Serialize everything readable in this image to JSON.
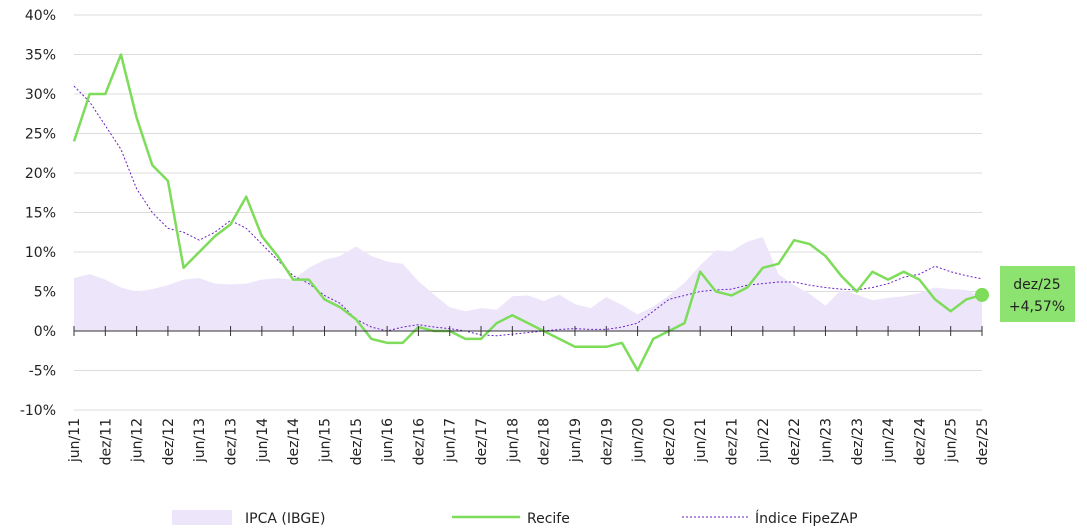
{
  "chart_data": {
    "type": "line",
    "categories": [
      "jun/11",
      null,
      "dez/11",
      null,
      "jun/12",
      null,
      "dez/12",
      null,
      "jun/13",
      null,
      "dez/13",
      null,
      "jun/14",
      null,
      "dez/14",
      null,
      "jun/15",
      null,
      "dez/15",
      null,
      "jun/16",
      null,
      "dez/16",
      null,
      "jun/17",
      null,
      "dez/17",
      null,
      "jun/18",
      null,
      "dez/18",
      null,
      "jun/19",
      null,
      "dez/19",
      null,
      "jun/20",
      null,
      "dez/20",
      null,
      "jun/21",
      null,
      "dez/21",
      null,
      "jun/22",
      null,
      "dez/22",
      null,
      "jun/23",
      null,
      "dez/23",
      null,
      "jun/24",
      null,
      "dez/24",
      null,
      "jun/25",
      null,
      "dez/25"
    ],
    "series": [
      {
        "name": "IPCA (IBGE)",
        "kind": "area",
        "color": "#ede6fb",
        "values": [
          6.7,
          7.2,
          6.5,
          5.5,
          5,
          5.3,
          5.8,
          6.5,
          6.7,
          6,
          5.9,
          6,
          6.5,
          6.7,
          6.5,
          8,
          9,
          9.5,
          10.7,
          9.5,
          8.8,
          8.5,
          6.3,
          4.6,
          3,
          2.5,
          2.9,
          2.7,
          4.4,
          4.5,
          3.8,
          4.6,
          3.4,
          2.9,
          4.3,
          3.3,
          2.1,
          3.1,
          4.5,
          6.1,
          8.3,
          10.2,
          10.1,
          11.3,
          11.9,
          7.2,
          5.8,
          4.7,
          3.2,
          5.2,
          4.6,
          3.9,
          4.2,
          4.4,
          4.8,
          5.5,
          5.3,
          5.2,
          4.3
        ]
      },
      {
        "name": "Recife",
        "kind": "line",
        "color": "#7ddc5a",
        "values": [
          24,
          30,
          30,
          35,
          27,
          21,
          19,
          8,
          10,
          12,
          13.5,
          17,
          12,
          9.5,
          6.5,
          6.5,
          4,
          3,
          1.5,
          -1,
          -1.5,
          -1.5,
          0.5,
          0,
          0,
          -1,
          -1,
          1,
          2,
          1,
          0,
          -1,
          -2,
          -2,
          -2,
          -1.5,
          -5,
          -1,
          0,
          1,
          7.5,
          5,
          4.5,
          5.5,
          8,
          8.5,
          11.5,
          11,
          9.5,
          7,
          5,
          7.5,
          6.5,
          7.5,
          6.5,
          4,
          2.5,
          4,
          4.57
        ]
      },
      {
        "name": "Índice FipeZAP",
        "kind": "dotted",
        "color": "#6a1fc2",
        "values": [
          31,
          29,
          26,
          23,
          18,
          15,
          13,
          12.5,
          11.5,
          12.5,
          14,
          13,
          11,
          9,
          7,
          6,
          4.5,
          3.5,
          1.5,
          0.5,
          0,
          0.5,
          0.8,
          0.5,
          0.3,
          0,
          -0.5,
          -0.6,
          -0.4,
          -0.2,
          0,
          0.2,
          0.3,
          0.2,
          0.2,
          0.5,
          1,
          2.5,
          4,
          4.5,
          5,
          5.2,
          5.3,
          5.8,
          6,
          6.2,
          6.2,
          5.8,
          5.5,
          5.3,
          5.2,
          5.5,
          6,
          6.8,
          7.2,
          8.2,
          7.5,
          7,
          6.6
        ]
      }
    ],
    "ylim": [
      -10,
      40
    ],
    "yticks": [
      {
        "value": -10,
        "label": "-10%"
      },
      {
        "value": -5,
        "label": "-5%"
      },
      {
        "value": 0,
        "label": "0%"
      },
      {
        "value": 5,
        "label": "5%"
      },
      {
        "value": 10,
        "label": "10%"
      },
      {
        "value": 15,
        "label": "15%"
      },
      {
        "value": 20,
        "label": "20%"
      },
      {
        "value": 25,
        "label": "25%"
      },
      {
        "value": 30,
        "label": "30%"
      },
      {
        "value": 35,
        "label": "35%"
      },
      {
        "value": 40,
        "label": "40%"
      }
    ],
    "grid": true,
    "annotation": {
      "lines": [
        "dez/25",
        "+4,57%"
      ],
      "color": "#8de36f"
    }
  }
}
